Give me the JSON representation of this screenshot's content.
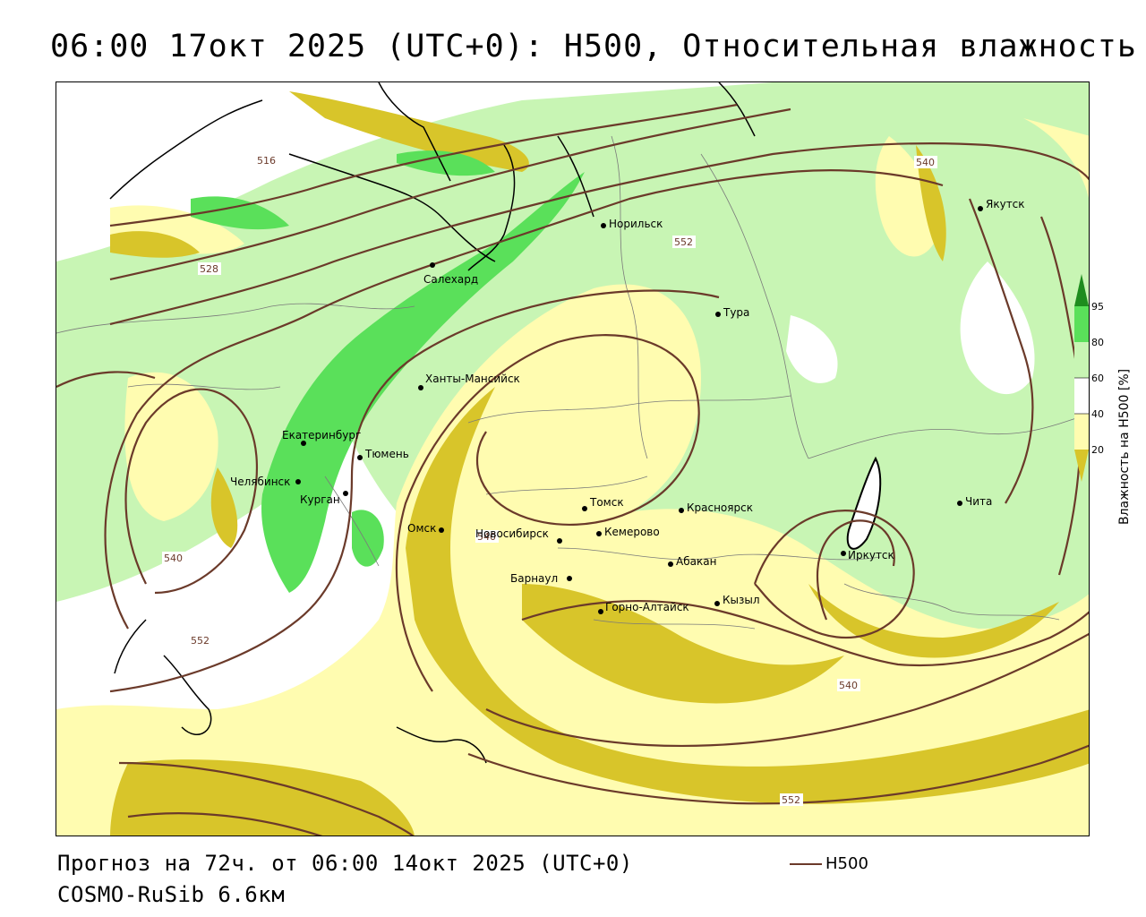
{
  "header": {
    "title": "06:00 17окт 2025 (UTC+0): H500, Относительная влажность"
  },
  "footer": {
    "forecast": "Прогноз на 72ч. от 06:00 14окт 2025 (UTC+0)",
    "model": "COSMO-RuSib 6.6км",
    "line_legend": "H500"
  },
  "colorbar": {
    "label": "Влажность на H500 [%]",
    "ticks": [
      "95",
      "80",
      "60",
      "40",
      "20"
    ],
    "colors": {
      "lt20": "#d8c52a",
      "20_40": "#fffcb0",
      "40_60": "#ffffff",
      "60_80": "#c8f5b4",
      "80_95": "#5ae05a",
      "gt95": "#1e8c1e"
    }
  },
  "contours": {
    "color": "#6b3a2a",
    "labels": [
      "516",
      "528",
      "540",
      "552",
      "540",
      "552",
      "540",
      "540",
      "552"
    ]
  },
  "cities": [
    {
      "name": "Якутск"
    },
    {
      "name": "Норильск"
    },
    {
      "name": "Салехард"
    },
    {
      "name": "Тура"
    },
    {
      "name": "Ханты-Мансийск"
    },
    {
      "name": "Екатеринбург"
    },
    {
      "name": "Тюмень"
    },
    {
      "name": "Челябинск"
    },
    {
      "name": "Курган"
    },
    {
      "name": "Омск"
    },
    {
      "name": "Новосибирск"
    },
    {
      "name": "Томск"
    },
    {
      "name": "Кемерово"
    },
    {
      "name": "Красноярск"
    },
    {
      "name": "Абакан"
    },
    {
      "name": "Барнаул"
    },
    {
      "name": "Горно-Алтайск"
    },
    {
      "name": "Кызыл"
    },
    {
      "name": "Иркутск"
    },
    {
      "name": "Чита"
    }
  ]
}
